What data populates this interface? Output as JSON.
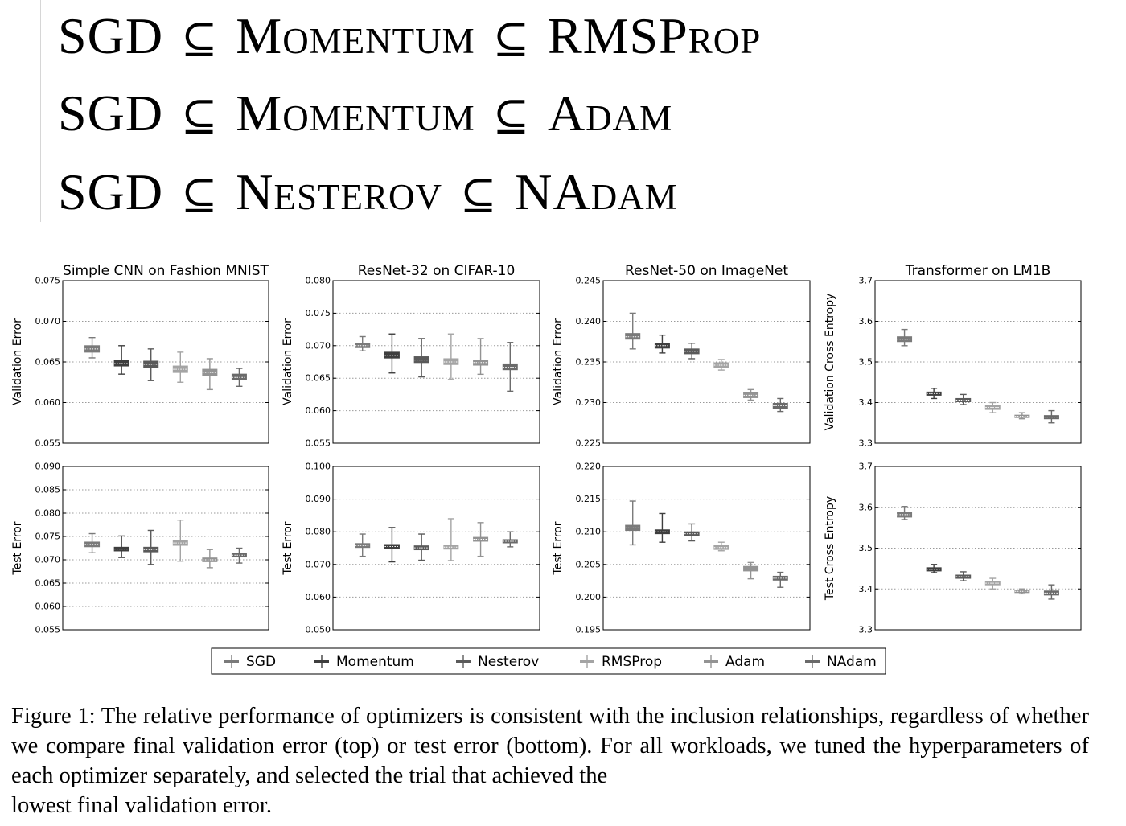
{
  "inclusions": [
    {
      "a": "SGD",
      "b": "Momentum",
      "c": "RMSProp"
    },
    {
      "a": "SGD",
      "b": "Momentum",
      "c": "Adam"
    },
    {
      "a": "SGD",
      "b": "Nesterov",
      "c": "NAdam"
    }
  ],
  "inclusion_symbol": "⊆",
  "caption": {
    "justified": "Figure 1: The relative performance of optimizers is consistent with the inclusion relationships, regardless of whether we compare final validation error (top) or test error (bottom). For all workloads, we tuned the hyperparameters of each optimizer separately, and selected the trial that achieved the",
    "last_line": "lowest final validation error."
  },
  "chart_data": {
    "type": "box",
    "series": [
      {
        "name": "SGD",
        "color": "#7a7a7a"
      },
      {
        "name": "Momentum",
        "color": "#3e3e3e"
      },
      {
        "name": "Nesterov",
        "color": "#5a5a5a"
      },
      {
        "name": "RMSProp",
        "color": "#a4a4a4"
      },
      {
        "name": "Adam",
        "color": "#939393"
      },
      {
        "name": "NAdam",
        "color": "#6a6a6a"
      }
    ],
    "legend_position": "bottom-center",
    "grid": "horizontal dotted",
    "panels": [
      {
        "row": 0,
        "col": 0,
        "title": "Simple CNN on Fashion MNIST",
        "ylabel": "Validation Error",
        "ylim": [
          0.055,
          0.075
        ],
        "yticks": [
          "0.055",
          "0.060",
          "0.065",
          "0.070",
          "0.075"
        ],
        "boxes": [
          [
            0.0655,
            0.0662,
            0.0666,
            0.067,
            0.068
          ],
          [
            0.0635,
            0.0645,
            0.0648,
            0.0652,
            0.067
          ],
          [
            0.0627,
            0.0643,
            0.0647,
            0.0651,
            0.0666
          ],
          [
            0.0625,
            0.0637,
            0.0641,
            0.0645,
            0.0662
          ],
          [
            0.0616,
            0.0633,
            0.0637,
            0.0641,
            0.0654
          ],
          [
            0.062,
            0.0628,
            0.0631,
            0.0635,
            0.0642
          ]
        ]
      },
      {
        "row": 0,
        "col": 1,
        "title": "ResNet-32 on CIFAR-10",
        "ylabel": "Validation Error",
        "ylim": [
          0.055,
          0.08
        ],
        "yticks": [
          "0.055",
          "0.060",
          "0.065",
          "0.070",
          "0.075",
          "0.080"
        ],
        "boxes": [
          [
            0.0692,
            0.0697,
            0.07,
            0.0704,
            0.0714
          ],
          [
            0.0658,
            0.0681,
            0.0685,
            0.069,
            0.0718
          ],
          [
            0.0652,
            0.0674,
            0.0678,
            0.0683,
            0.0711
          ],
          [
            0.0648,
            0.0671,
            0.0675,
            0.068,
            0.0718
          ],
          [
            0.0656,
            0.067,
            0.0674,
            0.0678,
            0.0711
          ],
          [
            0.063,
            0.0663,
            0.0667,
            0.0672,
            0.0705
          ]
        ]
      },
      {
        "row": 0,
        "col": 2,
        "title": "ResNet-50 on ImageNet",
        "ylabel": "Validation Error",
        "ylim": [
          0.225,
          0.245
        ],
        "yticks": [
          "0.225",
          "0.230",
          "0.235",
          "0.240",
          "0.245"
        ],
        "boxes": [
          [
            0.2366,
            0.2378,
            0.2381,
            0.2385,
            0.241
          ],
          [
            0.2361,
            0.2367,
            0.237,
            0.2373,
            0.2383
          ],
          [
            0.2354,
            0.236,
            0.2363,
            0.2366,
            0.2373
          ],
          [
            0.234,
            0.2343,
            0.2346,
            0.2349,
            0.2353
          ],
          [
            0.2303,
            0.2306,
            0.2309,
            0.2312,
            0.2316
          ],
          [
            0.2289,
            0.2293,
            0.2296,
            0.2299,
            0.2305
          ]
        ]
      },
      {
        "row": 0,
        "col": 3,
        "title": "Transformer on LM1B",
        "ylabel": "Validation Cross Entropy",
        "ylim": [
          3.3,
          3.7
        ],
        "yticks": [
          "3.3",
          "3.4",
          "3.5",
          "3.6",
          "3.7"
        ],
        "boxes": [
          [
            3.54,
            3.55,
            3.556,
            3.562,
            3.58
          ],
          [
            3.41,
            3.418,
            3.422,
            3.426,
            3.435
          ],
          [
            3.395,
            3.402,
            3.406,
            3.41,
            3.42
          ],
          [
            3.375,
            3.383,
            3.388,
            3.393,
            3.4
          ],
          [
            3.36,
            3.363,
            3.366,
            3.369,
            3.375
          ],
          [
            3.35,
            3.36,
            3.364,
            3.368,
            3.38
          ]
        ]
      },
      {
        "row": 1,
        "col": 0,
        "title": "",
        "ylabel": "Test Error",
        "ylim": [
          0.055,
          0.09
        ],
        "yticks": [
          "0.055",
          "0.060",
          "0.065",
          "0.070",
          "0.075",
          "0.080",
          "0.085",
          "0.090"
        ],
        "boxes": [
          [
            0.0715,
            0.0728,
            0.0733,
            0.0738,
            0.0756
          ],
          [
            0.0705,
            0.0719,
            0.0723,
            0.0727,
            0.0751
          ],
          [
            0.069,
            0.0717,
            0.0722,
            0.0727,
            0.0763
          ],
          [
            0.0697,
            0.0731,
            0.0736,
            0.0741,
            0.0785
          ],
          [
            0.0683,
            0.0696,
            0.07,
            0.0704,
            0.0722
          ],
          [
            0.0693,
            0.0706,
            0.071,
            0.0714,
            0.0725
          ]
        ]
      },
      {
        "row": 1,
        "col": 1,
        "title": "",
        "ylabel": "Test Error",
        "ylim": [
          0.05,
          0.1
        ],
        "yticks": [
          "0.050",
          "0.060",
          "0.070",
          "0.080",
          "0.090",
          "0.100"
        ],
        "boxes": [
          [
            0.0725,
            0.0752,
            0.0758,
            0.0764,
            0.0793
          ],
          [
            0.0708,
            0.0749,
            0.0755,
            0.0761,
            0.0813
          ],
          [
            0.0713,
            0.0745,
            0.0751,
            0.0757,
            0.0793
          ],
          [
            0.0712,
            0.0747,
            0.0753,
            0.0759,
            0.084
          ],
          [
            0.0725,
            0.0771,
            0.0777,
            0.0783,
            0.0828
          ],
          [
            0.0754,
            0.0766,
            0.0771,
            0.0776,
            0.08
          ]
        ]
      },
      {
        "row": 1,
        "col": 2,
        "title": "",
        "ylabel": "Test Error",
        "ylim": [
          0.195,
          0.22
        ],
        "yticks": [
          "0.195",
          "0.200",
          "0.205",
          "0.210",
          "0.215",
          "0.220"
        ],
        "boxes": [
          [
            0.208,
            0.2102,
            0.2106,
            0.211,
            0.2147
          ],
          [
            0.2084,
            0.2097,
            0.21,
            0.2103,
            0.2128
          ],
          [
            0.2086,
            0.2094,
            0.2097,
            0.21,
            0.2112
          ],
          [
            0.2071,
            0.2073,
            0.2076,
            0.2079,
            0.2084
          ],
          [
            0.2028,
            0.204,
            0.2043,
            0.2047,
            0.2053
          ],
          [
            0.2015,
            0.2026,
            0.2029,
            0.2032,
            0.2038
          ]
        ]
      },
      {
        "row": 1,
        "col": 3,
        "title": "",
        "ylabel": "Test Cross Entropy",
        "ylim": [
          3.3,
          3.7
        ],
        "yticks": [
          "3.3",
          "3.4",
          "3.5",
          "3.6",
          "3.7"
        ],
        "boxes": [
          [
            3.57,
            3.576,
            3.582,
            3.588,
            3.602
          ],
          [
            3.44,
            3.444,
            3.448,
            3.452,
            3.46
          ],
          [
            3.42,
            3.426,
            3.43,
            3.434,
            3.442
          ],
          [
            3.4,
            3.41,
            3.414,
            3.418,
            3.426
          ],
          [
            3.388,
            3.391,
            3.394,
            3.397,
            3.4
          ],
          [
            3.375,
            3.385,
            3.39,
            3.395,
            3.41
          ]
        ]
      }
    ]
  }
}
